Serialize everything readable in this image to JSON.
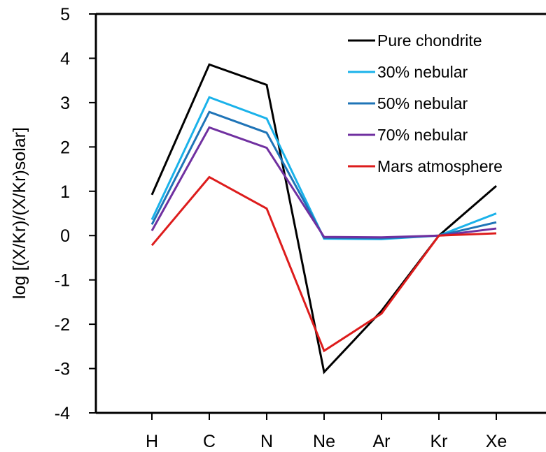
{
  "chart_data": {
    "type": "line",
    "title": "",
    "xlabel": "",
    "ylabel": "log [(X/Kr)/(X/Kr)solar]",
    "categories": [
      "H",
      "C",
      "N",
      "Ne",
      "Ar",
      "Kr",
      "Xe"
    ],
    "ylim": [
      -4,
      5
    ],
    "yticks": [
      "-4",
      "-3",
      "-2",
      "-1",
      "0",
      "1",
      "2",
      "3",
      "4",
      "5"
    ],
    "grid": false,
    "legend_position": "top-right",
    "series": [
      {
        "name": "Pure chondrite",
        "color": "#000000",
        "values": [
          0.92,
          3.86,
          3.4,
          -3.08,
          -1.7,
          0.0,
          1.12
        ]
      },
      {
        "name": "30% nebular",
        "color": "#1ab2ea",
        "values": [
          0.36,
          3.12,
          2.64,
          -0.07,
          -0.08,
          0.0,
          0.5
        ]
      },
      {
        "name": "50% nebular",
        "color": "#1f74b7",
        "values": [
          0.25,
          2.79,
          2.32,
          -0.05,
          -0.06,
          0.0,
          0.3
        ]
      },
      {
        "name": "70% nebular",
        "color": "#7030a0",
        "values": [
          0.11,
          2.44,
          1.98,
          -0.03,
          -0.04,
          0.0,
          0.16
        ]
      },
      {
        "name": "Mars atmosphere",
        "color": "#dd1c1c",
        "values": [
          -0.22,
          1.32,
          0.61,
          -2.6,
          -1.76,
          0.0,
          0.05
        ]
      }
    ]
  }
}
